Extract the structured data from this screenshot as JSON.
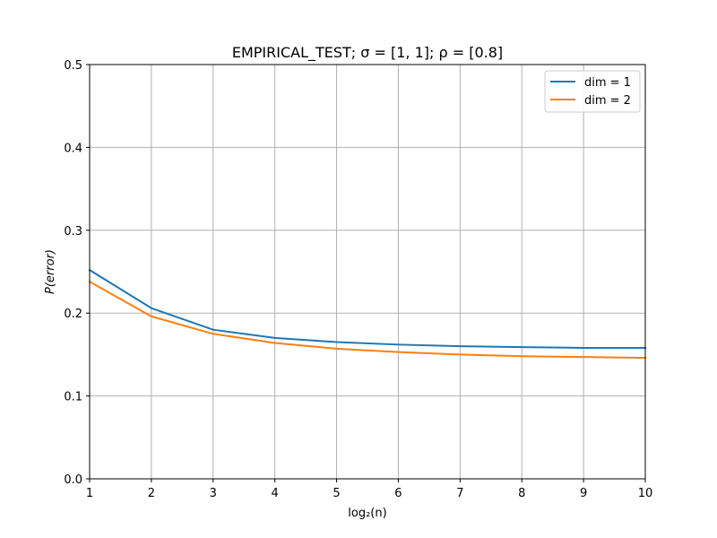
{
  "chart_data": {
    "type": "line",
    "title": "EMPIRICAL_TEST;  σ = [1, 1];  ρ = [0.8]",
    "xlabel": "log₂(n)",
    "ylabel": "P(error)",
    "xlim": [
      1,
      10
    ],
    "ylim": [
      0,
      0.5
    ],
    "xticks": [
      "1",
      "2",
      "3",
      "4",
      "5",
      "6",
      "7",
      "8",
      "9",
      "10"
    ],
    "yticks": [
      "0.0",
      "0.1",
      "0.2",
      "0.3",
      "0.4",
      "0.5"
    ],
    "grid": true,
    "legend_position": "top-right",
    "x": [
      1,
      2,
      3,
      4,
      5,
      6,
      7,
      8,
      9,
      10
    ],
    "series": [
      {
        "name": "dim = 1",
        "color": "#1f77b4",
        "values": [
          0.252,
          0.206,
          0.18,
          0.17,
          0.165,
          0.162,
          0.16,
          0.159,
          0.158,
          0.158
        ]
      },
      {
        "name": "dim = 2",
        "color": "#ff7f0e",
        "values": [
          0.238,
          0.196,
          0.175,
          0.164,
          0.157,
          0.153,
          0.15,
          0.148,
          0.147,
          0.146
        ]
      }
    ]
  }
}
